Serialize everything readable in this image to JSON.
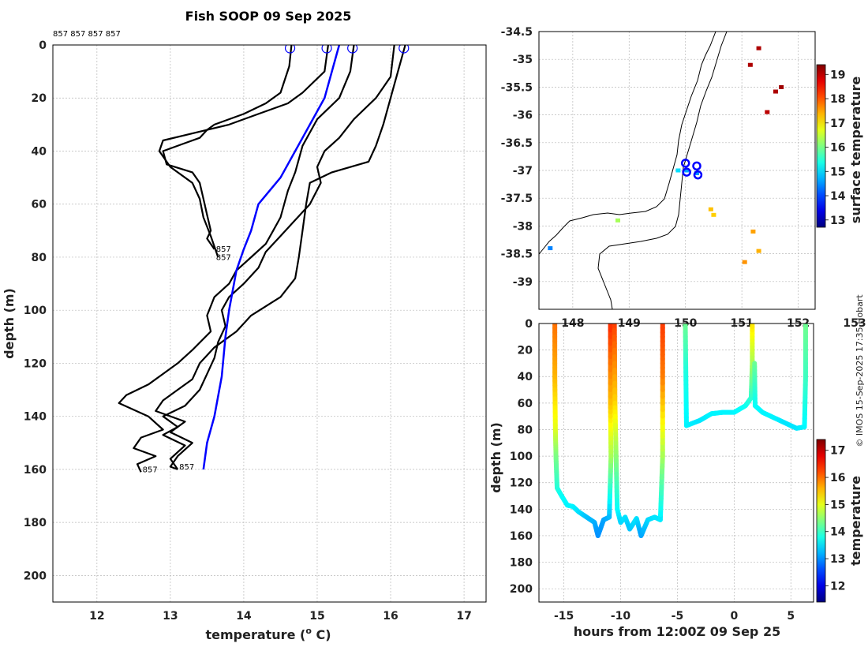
{
  "credit": "© IMOS 15-Sep-2025 17:35 Hobart",
  "chart_data": [
    {
      "type": "line",
      "title": "Fish SOOP 09 Sep 2025",
      "xlabel": "temperature",
      "xlabel_unit_o": "o",
      "xlabel_unit_c": "C)",
      "ylabel": "depth (m)",
      "xlim": [
        11.4,
        17.3
      ],
      "ylim": [
        210,
        0
      ],
      "xticks": [
        "12",
        "13",
        "14",
        "15",
        "16",
        "17"
      ],
      "yticks": [
        "0",
        "20",
        "40",
        "60",
        "80",
        "100",
        "120",
        "140",
        "160",
        "180",
        "200"
      ],
      "top_label": "857 857 857 857",
      "profile_labels": [
        {
          "text": "857",
          "t": 13.6,
          "d": 78
        },
        {
          "text": "857",
          "t": 13.6,
          "d": 81
        },
        {
          "text": "857",
          "t": 12.6,
          "d": 161
        },
        {
          "text": "857",
          "t": 13.1,
          "d": 160
        }
      ],
      "surface_markers": [
        14.63,
        15.13,
        15.48,
        16.18
      ],
      "climatology": {
        "name": "climatology",
        "color": "#0000ff",
        "points": [
          [
            15.3,
            0
          ],
          [
            15.2,
            10
          ],
          [
            15.1,
            20
          ],
          [
            14.8,
            35
          ],
          [
            14.5,
            50
          ],
          [
            14.2,
            60
          ],
          [
            14.1,
            70
          ],
          [
            14.0,
            77
          ],
          [
            13.9,
            85
          ],
          [
            13.8,
            100
          ],
          [
            13.75,
            110
          ],
          [
            13.7,
            125
          ],
          [
            13.6,
            140
          ],
          [
            13.5,
            150
          ],
          [
            13.45,
            160
          ]
        ]
      },
      "series": [
        {
          "name": "profile 1",
          "points": [
            [
              14.65,
              0
            ],
            [
              14.62,
              8
            ],
            [
              14.5,
              18
            ],
            [
              14.3,
              22
            ],
            [
              14.0,
              26
            ],
            [
              13.6,
              30
            ],
            [
              13.5,
              32
            ],
            [
              13.4,
              35
            ],
            [
              13.2,
              37
            ],
            [
              12.9,
              40
            ],
            [
              12.95,
              45
            ],
            [
              13.3,
              48
            ],
            [
              13.4,
              52
            ],
            [
              13.45,
              58
            ],
            [
              13.5,
              64
            ],
            [
              13.55,
              70
            ],
            [
              13.5,
              73
            ],
            [
              13.6,
              77
            ]
          ]
        },
        {
          "name": "profile 2",
          "points": [
            [
              15.15,
              0
            ],
            [
              15.1,
              10
            ],
            [
              14.8,
              18
            ],
            [
              14.6,
              22
            ],
            [
              14.2,
              26
            ],
            [
              13.8,
              30
            ],
            [
              13.2,
              34
            ],
            [
              12.9,
              36
            ],
            [
              12.85,
              40
            ],
            [
              13.0,
              46
            ],
            [
              13.3,
              52
            ],
            [
              13.4,
              58
            ],
            [
              13.45,
              65
            ],
            [
              13.55,
              72
            ],
            [
              13.6,
              76
            ],
            [
              13.65,
              80
            ]
          ]
        },
        {
          "name": "profile 3",
          "points": [
            [
              15.5,
              0
            ],
            [
              15.45,
              10
            ],
            [
              15.3,
              20
            ],
            [
              15.0,
              28
            ],
            [
              14.8,
              38
            ],
            [
              14.7,
              48
            ],
            [
              14.6,
              55
            ],
            [
              14.5,
              65
            ],
            [
              14.4,
              70
            ],
            [
              14.3,
              75
            ],
            [
              14.1,
              80
            ],
            [
              13.9,
              85
            ],
            [
              13.8,
              90
            ],
            [
              13.6,
              95
            ],
            [
              13.5,
              102
            ],
            [
              13.55,
              108
            ],
            [
              13.3,
              115
            ],
            [
              13.1,
              120
            ],
            [
              12.9,
              124
            ],
            [
              12.7,
              128
            ],
            [
              12.4,
              132
            ],
            [
              12.3,
              135
            ],
            [
              12.7,
              140
            ],
            [
              12.9,
              145
            ],
            [
              12.6,
              148
            ],
            [
              12.5,
              152
            ],
            [
              12.8,
              155
            ],
            [
              12.55,
              158
            ],
            [
              12.6,
              161
            ]
          ]
        },
        {
          "name": "profile 4",
          "points": [
            [
              16.2,
              0
            ],
            [
              16.1,
              10
            ],
            [
              16.0,
              20
            ],
            [
              15.9,
              30
            ],
            [
              15.8,
              38
            ],
            [
              15.7,
              44
            ],
            [
              15.2,
              48
            ],
            [
              14.9,
              52
            ],
            [
              14.85,
              60
            ],
            [
              14.8,
              70
            ],
            [
              14.75,
              80
            ],
            [
              14.7,
              88
            ],
            [
              14.5,
              95
            ],
            [
              14.1,
              102
            ],
            [
              13.9,
              108
            ],
            [
              13.6,
              114
            ],
            [
              13.4,
              120
            ],
            [
              13.3,
              126
            ],
            [
              13.1,
              130
            ],
            [
              12.9,
              134
            ],
            [
              12.8,
              138
            ],
            [
              13.2,
              142
            ],
            [
              13.0,
              146
            ],
            [
              13.3,
              150
            ],
            [
              13.1,
              155
            ],
            [
              13.0,
              159
            ],
            [
              13.1,
              160
            ]
          ]
        },
        {
          "name": "profile 5",
          "points": [
            [
              16.05,
              0
            ],
            [
              16.0,
              12
            ],
            [
              15.8,
              20
            ],
            [
              15.5,
              28
            ],
            [
              15.3,
              35
            ],
            [
              15.1,
              40
            ],
            [
              15.0,
              46
            ],
            [
              15.05,
              52
            ],
            [
              14.9,
              60
            ],
            [
              14.7,
              66
            ],
            [
              14.5,
              72
            ],
            [
              14.3,
              78
            ],
            [
              14.2,
              84
            ],
            [
              14.0,
              90
            ],
            [
              13.8,
              95
            ],
            [
              13.7,
              100
            ],
            [
              13.75,
              106
            ],
            [
              13.65,
              112
            ],
            [
              13.6,
              118
            ],
            [
              13.5,
              124
            ],
            [
              13.4,
              130
            ],
            [
              13.2,
              136
            ],
            [
              12.9,
              140
            ],
            [
              13.1,
              144
            ],
            [
              12.9,
              147
            ],
            [
              13.2,
              151
            ],
            [
              13.0,
              156
            ],
            [
              13.1,
              160
            ]
          ]
        }
      ]
    },
    {
      "type": "scatter",
      "subtitle": "map",
      "xlim": [
        147.4,
        152.3
      ],
      "ylim": [
        -39.5,
        -34.5
      ],
      "xticks": [
        "148",
        "149",
        "150",
        "151",
        "152",
        "153"
      ],
      "yticks": [
        "-34.5",
        "-35",
        "-35.5",
        "-36",
        "-36.5",
        "-37",
        "-37.5",
        "-38",
        "-38.5",
        "-39"
      ],
      "colorbar_label": "surface temperature",
      "colorbar_ticks": [
        "19",
        "18",
        "17",
        "16",
        "15",
        "14",
        "13"
      ],
      "colorbar_range": [
        12.7,
        19.4
      ],
      "points": [
        {
          "lon": 150.02,
          "lat": -37.0,
          "temp": 14.6
        },
        {
          "lon": 150.2,
          "lat": -37.05,
          "temp": 14.5
        },
        {
          "lon": 149.87,
          "lat": -37.0,
          "temp": 15.0
        },
        {
          "lon": 151.15,
          "lat": -35.1,
          "temp": 19.1
        },
        {
          "lon": 151.3,
          "lat": -34.8,
          "temp": 19.1
        },
        {
          "lon": 151.45,
          "lat": -35.95,
          "temp": 19.0
        },
        {
          "lon": 151.6,
          "lat": -35.58,
          "temp": 19.1
        },
        {
          "lon": 151.7,
          "lat": -35.5,
          "temp": 19.2
        },
        {
          "lon": 150.45,
          "lat": -37.7,
          "temp": 17.3
        },
        {
          "lon": 150.5,
          "lat": -37.8,
          "temp": 17.2
        },
        {
          "lon": 151.2,
          "lat": -38.1,
          "temp": 17.5
        },
        {
          "lon": 151.05,
          "lat": -38.65,
          "temp": 17.6
        },
        {
          "lon": 151.3,
          "lat": -38.45,
          "temp": 17.4
        },
        {
          "lon": 148.8,
          "lat": -37.9,
          "temp": 16.3
        },
        {
          "lon": 147.6,
          "lat": -38.4,
          "temp": 14.4
        }
      ],
      "markers": [
        {
          "lon": 150.0,
          "lat": -36.87
        },
        {
          "lon": 150.2,
          "lat": -36.92
        },
        {
          "lon": 150.02,
          "lat": -37.03
        },
        {
          "lon": 150.22,
          "lat": -37.08
        }
      ]
    },
    {
      "type": "scatter",
      "xlabel": "hours from 12:00Z 09 Sep 25",
      "ylabel": "depth (m)",
      "xlim": [
        -17.2,
        7.0
      ],
      "ylim": [
        210,
        0
      ],
      "xticks": [
        "-15",
        "-10",
        "-5",
        "0",
        "5"
      ],
      "yticks": [
        "0",
        "20",
        "40",
        "60",
        "80",
        "100",
        "120",
        "140",
        "160",
        "180",
        "200"
      ],
      "colorbar_label": "temperature",
      "colorbar_ticks": [
        "17",
        "16",
        "15",
        "14",
        "13",
        "12"
      ],
      "colorbar_range": [
        11.4,
        17.4
      ],
      "tracks": [
        {
          "name": "tow 1",
          "points": [
            [
              -15.8,
              0,
              16.0
            ],
            [
              -15.8,
              40,
              15.6
            ],
            [
              -15.75,
              80,
              15.0
            ],
            [
              -15.7,
              100,
              14.4
            ],
            [
              -15.6,
              124,
              13.9
            ],
            [
              -15.2,
              130,
              13.7
            ],
            [
              -14.7,
              137,
              13.6
            ],
            [
              -14.2,
              138,
              13.6
            ],
            [
              -13.7,
              142,
              13.5
            ],
            [
              -13.0,
              146,
              13.3
            ],
            [
              -12.3,
              150,
              13.2
            ],
            [
              -12.0,
              160,
              13.0
            ],
            [
              -11.5,
              148,
              13.1
            ],
            [
              -11.0,
              146,
              13.2
            ],
            [
              -10.85,
              100,
              14.6
            ],
            [
              -10.9,
              60,
              15.5
            ],
            [
              -10.9,
              0,
              16.4
            ]
          ]
        },
        {
          "name": "tow 2",
          "points": [
            [
              -10.55,
              0,
              16.3
            ],
            [
              -10.5,
              60,
              15.4
            ],
            [
              -10.4,
              100,
              14.5
            ],
            [
              -10.3,
              140,
              13.7
            ],
            [
              -10.0,
              150,
              13.4
            ],
            [
              -9.6,
              146,
              13.5
            ],
            [
              -9.2,
              155,
              13.3
            ],
            [
              -8.6,
              147,
              13.5
            ],
            [
              -8.2,
              160,
              13.1
            ],
            [
              -7.6,
              148,
              13.4
            ],
            [
              -7.0,
              146,
              13.5
            ],
            [
              -6.5,
              148,
              13.5
            ],
            [
              -6.3,
              100,
              14.6
            ],
            [
              -6.3,
              40,
              15.9
            ],
            [
              -6.3,
              0,
              16.3
            ]
          ]
        },
        {
          "name": "tow 3",
          "points": [
            [
              -4.3,
              0,
              14.3
            ],
            [
              -4.25,
              40,
              13.8
            ],
            [
              -4.2,
              77,
              13.6
            ],
            [
              -3.0,
              73,
              13.5
            ],
            [
              -2.0,
              68,
              13.6
            ],
            [
              -1.0,
              67,
              13.6
            ],
            [
              0.0,
              67,
              13.6
            ],
            [
              1.0,
              62,
              13.7
            ],
            [
              1.5,
              56,
              13.9
            ],
            [
              1.6,
              30,
              14.6
            ],
            [
              1.6,
              0,
              15.3
            ]
          ]
        },
        {
          "name": "tow 4",
          "points": [
            [
              1.8,
              30,
              14.3
            ],
            [
              1.85,
              62,
              13.7
            ],
            [
              2.5,
              67,
              13.6
            ],
            [
              3.5,
              71,
              13.6
            ],
            [
              4.5,
              75,
              13.5
            ],
            [
              5.5,
              79,
              13.5
            ],
            [
              6.2,
              78,
              13.6
            ],
            [
              6.3,
              40,
              14.0
            ],
            [
              6.3,
              0,
              14.3
            ]
          ]
        }
      ]
    }
  ]
}
